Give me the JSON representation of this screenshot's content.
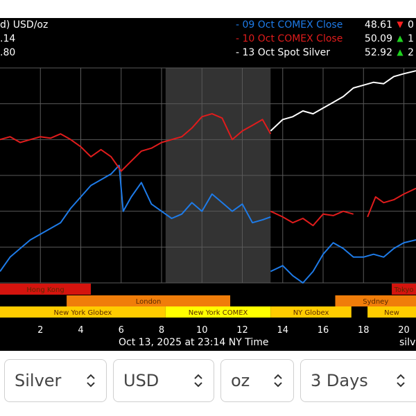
{
  "header": {
    "unit_label": "d) USD/oz",
    "bid_partial": ".14",
    "ask_partial": ".80"
  },
  "legend": [
    {
      "name": "- 09 Oct COMEX Close",
      "value": "48.61",
      "arrow": "▼",
      "change": "0",
      "color": "#1e7be8",
      "arrow_color": "#ff2020"
    },
    {
      "name": "- 10 Oct COMEX Close",
      "value": "50.09",
      "arrow": "▲",
      "change": "1",
      "color": "#e01c1c",
      "arrow_color": "#1fd21f"
    },
    {
      "name": "- 13 Oct Spot Silver",
      "value": "52.92",
      "arrow": "▲",
      "change": "2",
      "color": "#ffffff",
      "arrow_color": "#1fd21f"
    }
  ],
  "footer": {
    "timestamp": "Oct 13, 2025 at 23:14 NY Time",
    "brand_partial": "silve"
  },
  "controls": {
    "metal": "Silver",
    "currency": "USD",
    "unit": "oz",
    "range": "3 Days"
  },
  "colors": {
    "hong_kong": "#d4140e",
    "london": "#f07d0a",
    "new_york": "#ffcc00",
    "new_york_comex": "#ffff00",
    "sydney": "#f07d0a",
    "tokyo_red": "#d4140e"
  },
  "chart_data": {
    "type": "line",
    "title": "",
    "xlabel": "",
    "ylabel": "",
    "x_ticks": [
      2,
      4,
      6,
      8,
      10,
      12,
      14,
      16,
      18,
      20
    ],
    "xlim": [
      0.0,
      20.6
    ],
    "grid": true,
    "legend_position": "top-right",
    "shaded_region": [
      8.2,
      13.4
    ],
    "series": [
      {
        "name": "- 09 Oct COMEX Close",
        "color": "#1e7be8",
        "segments": [
          [
            [
              0.0,
              0.08
            ],
            [
              0.5,
              0.18
            ],
            [
              1.0,
              0.24
            ],
            [
              1.5,
              0.3
            ],
            [
              2.0,
              0.34
            ],
            [
              2.5,
              0.38
            ],
            [
              3.0,
              0.42
            ],
            [
              3.5,
              0.52
            ],
            [
              4.0,
              0.6
            ],
            [
              4.5,
              0.68
            ],
            [
              5.0,
              0.72
            ],
            [
              5.5,
              0.76
            ],
            [
              5.9,
              0.82
            ],
            [
              6.1,
              0.5
            ],
            [
              6.5,
              0.6
            ],
            [
              7.0,
              0.7
            ],
            [
              7.5,
              0.55
            ],
            [
              8.0,
              0.5
            ],
            [
              8.5,
              0.45
            ],
            [
              9.0,
              0.48
            ],
            [
              9.5,
              0.56
            ],
            [
              10.0,
              0.5
            ],
            [
              10.5,
              0.62
            ],
            [
              11.0,
              0.56
            ],
            [
              11.5,
              0.5
            ],
            [
              12.0,
              0.55
            ],
            [
              12.5,
              0.42
            ],
            [
              13.0,
              0.44
            ],
            [
              13.4,
              0.46
            ]
          ],
          [
            [
              13.4,
              0.08
            ],
            [
              14.0,
              0.12
            ],
            [
              14.5,
              0.05
            ],
            [
              15.0,
              0.0
            ],
            [
              15.5,
              0.08
            ],
            [
              16.0,
              0.2
            ],
            [
              16.5,
              0.28
            ],
            [
              17.0,
              0.24
            ],
            [
              17.5,
              0.18
            ],
            [
              18.0,
              0.18
            ],
            [
              18.5,
              0.2
            ],
            [
              19.0,
              0.18
            ],
            [
              19.5,
              0.24
            ],
            [
              20.0,
              0.28
            ],
            [
              20.6,
              0.3
            ]
          ]
        ]
      },
      {
        "name": "- 10 Oct COMEX Close",
        "color": "#e01c1c",
        "segments": [
          [
            [
              0.0,
              1.0
            ],
            [
              0.5,
              1.02
            ],
            [
              1.0,
              0.98
            ],
            [
              1.5,
              1.0
            ],
            [
              2.0,
              1.02
            ],
            [
              2.5,
              1.01
            ],
            [
              3.0,
              1.04
            ],
            [
              3.5,
              1.0
            ],
            [
              4.0,
              0.95
            ],
            [
              4.5,
              0.88
            ],
            [
              5.0,
              0.93
            ],
            [
              5.5,
              0.88
            ],
            [
              6.0,
              0.78
            ],
            [
              6.5,
              0.85
            ],
            [
              7.0,
              0.92
            ],
            [
              7.5,
              0.94
            ],
            [
              8.0,
              0.98
            ],
            [
              8.5,
              1.0
            ],
            [
              9.0,
              1.02
            ],
            [
              9.5,
              1.08
            ],
            [
              10.0,
              1.16
            ],
            [
              10.5,
              1.18
            ],
            [
              11.0,
              1.15
            ],
            [
              11.5,
              1.0
            ],
            [
              12.0,
              1.06
            ],
            [
              12.5,
              1.1
            ],
            [
              13.0,
              1.14
            ],
            [
              13.4,
              1.04
            ]
          ],
          [
            [
              13.4,
              0.5
            ],
            [
              14.0,
              0.46
            ],
            [
              14.5,
              0.42
            ],
            [
              15.0,
              0.45
            ],
            [
              15.5,
              0.4
            ],
            [
              16.0,
              0.48
            ],
            [
              16.5,
              0.47
            ],
            [
              17.0,
              0.5
            ],
            [
              17.5,
              0.48
            ]
          ],
          [
            [
              18.2,
              0.46
            ],
            [
              18.6,
              0.6
            ],
            [
              19.0,
              0.56
            ],
            [
              19.5,
              0.58
            ],
            [
              20.0,
              0.62
            ],
            [
              20.6,
              0.66
            ]
          ]
        ]
      },
      {
        "name": "- 13 Oct Spot Silver",
        "color": "#ffffff",
        "segments": [
          [
            [
              13.4,
              1.06
            ],
            [
              14.0,
              1.14
            ],
            [
              14.5,
              1.16
            ],
            [
              15.0,
              1.2
            ],
            [
              15.5,
              1.18
            ],
            [
              16.0,
              1.22
            ],
            [
              16.5,
              1.26
            ],
            [
              17.0,
              1.3
            ],
            [
              17.5,
              1.36
            ],
            [
              18.0,
              1.38
            ],
            [
              18.5,
              1.4
            ],
            [
              19.0,
              1.39
            ],
            [
              19.5,
              1.44
            ],
            [
              20.0,
              1.46
            ],
            [
              20.6,
              1.48
            ]
          ]
        ]
      }
    ],
    "sessions": [
      {
        "label": "Hong Kong",
        "start": 0.0,
        "end": 4.5,
        "row": 0,
        "color": "#d4140e"
      },
      {
        "label": "Tokyo",
        "start": 19.4,
        "end": 20.6,
        "row": 0,
        "color": "#d4140e"
      },
      {
        "label": "London",
        "start": 3.3,
        "end": 11.4,
        "row": 1,
        "color": "#f07d0a"
      },
      {
        "label": "Sydney",
        "start": 16.6,
        "end": 20.6,
        "row": 1,
        "color": "#f07d0a"
      },
      {
        "label": "New York Globex",
        "start": 0.0,
        "end": 8.2,
        "row": 2,
        "color": "#ffcc00"
      },
      {
        "label": "New York COMEX",
        "start": 8.2,
        "end": 13.4,
        "row": 2,
        "color": "#ffff00"
      },
      {
        "label": "NY Globex",
        "start": 13.4,
        "end": 17.4,
        "row": 2,
        "color": "#ffcc00"
      },
      {
        "label": "New",
        "start": 18.2,
        "end": 20.6,
        "row": 2,
        "color": "#ffcc00"
      }
    ]
  }
}
